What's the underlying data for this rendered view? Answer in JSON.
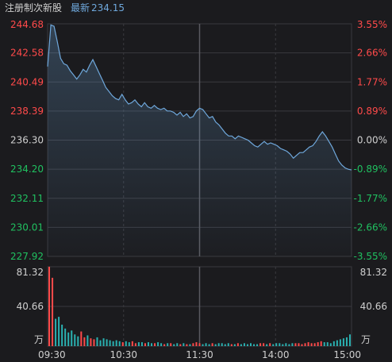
{
  "header": {
    "title": "注册制次新股",
    "latest_label": "最新",
    "latest_value": "234.15"
  },
  "colors": {
    "background": "#1b1b1e",
    "grid": "#3a3a3f",
    "line": "#6fa8dc",
    "up": "#ff4a4a",
    "down": "#20c060",
    "neutral": "#cfcfcf"
  },
  "chart_data": {
    "type": "line",
    "y_left_ticks": [
      "244.68",
      "242.58",
      "240.49",
      "238.39",
      "236.30",
      "234.20",
      "232.11",
      "230.01",
      "227.92"
    ],
    "y_right_ticks": [
      "3.55%",
      "2.66%",
      "1.77%",
      "0.89%",
      "0.00%",
      "-0.89%",
      "-1.77%",
      "-2.66%",
      "-3.55%"
    ],
    "ylim": [
      227.92,
      244.68
    ],
    "x_ticks": [
      "09:30",
      "10:30",
      "11:30",
      "14:00",
      "15:00"
    ],
    "volume": {
      "ticks": [
        "81.32",
        "40.66",
        "万"
      ],
      "right_ticks": [
        "81.32",
        "40.66",
        "万"
      ],
      "ylim": [
        0,
        81.32
      ]
    },
    "series": [
      {
        "values": [
          241.6,
          244.6,
          244.5,
          243.4,
          242.2,
          241.8,
          241.7,
          241.3,
          241.0,
          240.7,
          241.0,
          241.4,
          241.2,
          241.7,
          242.1,
          241.6,
          241.1,
          240.6,
          240.1,
          239.8,
          239.5,
          239.3,
          239.2,
          239.6,
          239.2,
          238.9,
          239.0,
          239.2,
          238.9,
          238.7,
          239.0,
          238.7,
          238.6,
          238.8,
          238.6,
          238.5,
          238.6,
          238.4,
          238.4,
          238.3,
          238.1,
          238.3,
          238.0,
          238.2,
          237.9,
          238.0,
          238.4,
          238.6,
          238.5,
          238.2,
          237.9,
          238.0,
          237.6,
          237.4,
          237.1,
          236.8,
          236.6,
          236.6,
          236.4,
          236.6,
          236.5,
          236.4,
          236.3,
          236.1,
          235.9,
          235.8,
          236.0,
          236.2,
          236.0,
          236.1,
          236.0,
          235.9,
          235.7,
          235.6,
          235.5,
          235.3,
          235.0,
          235.2,
          235.4,
          235.4,
          235.6,
          235.8,
          235.9,
          236.2,
          236.6,
          236.9,
          236.6,
          236.2,
          235.8,
          235.3,
          234.8,
          234.5,
          234.3,
          234.2,
          234.15
        ],
        "volume": [
          81.32,
          70.0,
          28.0,
          30.0,
          22.0,
          18.0,
          14.0,
          16.0,
          12.0,
          10.0,
          15.0,
          9.0,
          11.0,
          8.0,
          7.0,
          9.0,
          6.0,
          8.0,
          7.0,
          6.0,
          5.0,
          6.0,
          5.0,
          4.0,
          5.0,
          4.0,
          5.0,
          3.0,
          4.0,
          4.0,
          3.0,
          4.0,
          3.0,
          3.0,
          4.0,
          3.0,
          2.0,
          3.0,
          3.0,
          2.0,
          3.0,
          2.0,
          3.0,
          2.0,
          2.0,
          3.0,
          4.0,
          3.0,
          2.0,
          3.0,
          2.0,
          3.0,
          2.0,
          3.0,
          3.0,
          2.0,
          3.0,
          2.0,
          2.0,
          3.0,
          2.0,
          3.0,
          2.0,
          3.0,
          2.0,
          2.0,
          3.0,
          3.0,
          2.0,
          3.0,
          2.0,
          3.0,
          3.0,
          2.0,
          3.0,
          2.0,
          3.0,
          3.0,
          3.0,
          2.0,
          3.0,
          4.0,
          3.0,
          3.0,
          4.0,
          5.0,
          4.0,
          4.0,
          3.0,
          5.0,
          6.0,
          7.0,
          8.0,
          9.0,
          12.0
        ]
      }
    ]
  }
}
